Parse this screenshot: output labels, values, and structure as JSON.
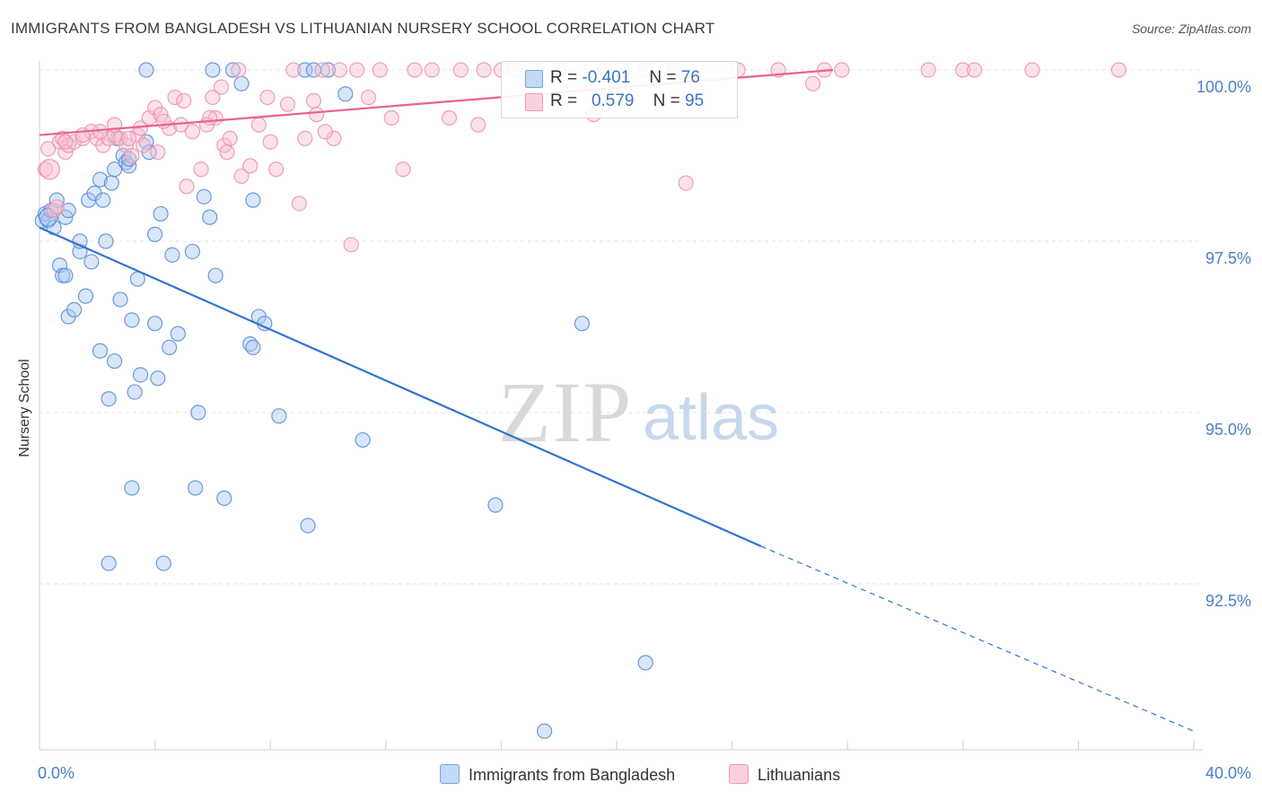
{
  "header": {
    "title": "IMMIGRANTS FROM BANGLADESH VS LITHUANIAN NURSERY SCHOOL CORRELATION CHART",
    "source": "Source: ZipAtlas.com"
  },
  "watermark": {
    "zip": "ZIP",
    "atlas": "atlas"
  },
  "legend": {
    "r_label": "R =",
    "n_label": "N =",
    "rows": [
      {
        "r": "-0.401",
        "n": "76",
        "color": "#a8c8f0",
        "border": "#6a9ede"
      },
      {
        "r": "0.579",
        "n": "95",
        "color": "#f7bed0",
        "border": "#ee8aaa"
      }
    ]
  },
  "bottom_legend": [
    {
      "label": "Immigrants from Bangladesh",
      "color": "#c4d9f5",
      "border": "#7aa4dc"
    },
    {
      "label": "Lithuanians",
      "color": "#fbd0dd",
      "border": "#ee9ab5"
    }
  ],
  "colors": {
    "blue": "#5b8fd6",
    "blue_line": "#2f74d0",
    "pink": "#ee93b0",
    "pink_line": "#e8638f",
    "axis_text": "#4a7fc8"
  },
  "chart_data": {
    "type": "scatter",
    "title": "IMMIGRANTS FROM BANGLADESH VS LITHUANIAN NURSERY SCHOOL CORRELATION CHART",
    "xlabel": "",
    "ylabel": "Nursery School",
    "xlim": [
      0,
      40
    ],
    "ylim": [
      90.2,
      100.25
    ],
    "x_tick_labels": [
      "0.0%",
      "40.0%"
    ],
    "y_ticks": [
      92.5,
      95.0,
      97.5,
      100.0
    ],
    "y_tick_labels": [
      "92.5%",
      "95.0%",
      "97.5%",
      "100.0%"
    ],
    "grid": true,
    "series": [
      {
        "name": "Immigrants from Bangladesh",
        "r": -0.401,
        "n": 76,
        "trend": {
          "x": [
            0.0,
            25.0
          ],
          "y": [
            97.7,
            93.05
          ],
          "dashed_to": [
            40.0,
            90.35
          ]
        },
        "points": [
          [
            0.1,
            97.8
          ],
          [
            0.2,
            97.9
          ],
          [
            0.3,
            97.8
          ],
          [
            0.4,
            97.95
          ],
          [
            0.5,
            97.7
          ],
          [
            0.6,
            98.1
          ],
          [
            0.9,
            97.85
          ],
          [
            1.0,
            97.95
          ],
          [
            0.7,
            97.15
          ],
          [
            0.8,
            97.0
          ],
          [
            0.9,
            97.0
          ],
          [
            1.0,
            96.4
          ],
          [
            1.2,
            96.5
          ],
          [
            1.4,
            97.35
          ],
          [
            1.4,
            97.5
          ],
          [
            1.8,
            97.2
          ],
          [
            1.7,
            98.1
          ],
          [
            1.9,
            98.2
          ],
          [
            1.6,
            96.7
          ],
          [
            2.1,
            98.4
          ],
          [
            2.1,
            95.9
          ],
          [
            2.2,
            98.1
          ],
          [
            2.5,
            98.35
          ],
          [
            2.3,
            97.5
          ],
          [
            2.4,
            95.2
          ],
          [
            2.6,
            98.55
          ],
          [
            2.6,
            95.75
          ],
          [
            2.7,
            99.0
          ],
          [
            2.8,
            96.65
          ],
          [
            2.9,
            98.75
          ],
          [
            3.0,
            98.65
          ],
          [
            3.1,
            98.6
          ],
          [
            3.1,
            98.7
          ],
          [
            3.2,
            96.35
          ],
          [
            3.2,
            93.9
          ],
          [
            3.3,
            95.3
          ],
          [
            3.4,
            96.95
          ],
          [
            3.5,
            95.55
          ],
          [
            3.7,
            98.95
          ],
          [
            3.8,
            98.8
          ],
          [
            3.7,
            100.0
          ],
          [
            4.0,
            96.3
          ],
          [
            4.0,
            97.6
          ],
          [
            4.1,
            95.5
          ],
          [
            4.2,
            97.9
          ],
          [
            4.3,
            92.8
          ],
          [
            4.5,
            95.95
          ],
          [
            4.6,
            97.3
          ],
          [
            4.8,
            96.15
          ],
          [
            5.3,
            97.35
          ],
          [
            5.4,
            93.9
          ],
          [
            5.5,
            95.0
          ],
          [
            5.7,
            98.15
          ],
          [
            5.9,
            97.85
          ],
          [
            6.1,
            97.0
          ],
          [
            6.0,
            100.0
          ],
          [
            6.4,
            93.75
          ],
          [
            6.7,
            100.0
          ],
          [
            7.0,
            99.8
          ],
          [
            7.3,
            96.0
          ],
          [
            7.4,
            98.1
          ],
          [
            7.4,
            95.95
          ],
          [
            7.6,
            96.4
          ],
          [
            7.8,
            96.3
          ],
          [
            8.3,
            94.95
          ],
          [
            9.3,
            93.35
          ],
          [
            9.2,
            100.0
          ],
          [
            9.5,
            100.0
          ],
          [
            10.0,
            100.0
          ],
          [
            10.6,
            99.65
          ],
          [
            11.2,
            94.6
          ],
          [
            15.8,
            93.65
          ],
          [
            18.8,
            96.3
          ],
          [
            21.0,
            91.35
          ],
          [
            17.5,
            90.35
          ],
          [
            2.4,
            92.8
          ]
        ]
      },
      {
        "name": "Lithuanians",
        "r": 0.579,
        "n": 95,
        "trend": {
          "x": [
            0.0,
            27.5
          ],
          "y": [
            99.05,
            100.0
          ]
        },
        "points": [
          [
            0.2,
            98.55
          ],
          [
            0.3,
            98.85
          ],
          [
            0.5,
            97.95
          ],
          [
            0.6,
            98.0
          ],
          [
            0.7,
            98.95
          ],
          [
            0.8,
            99.0
          ],
          [
            0.9,
            98.8
          ],
          [
            1.0,
            98.9
          ],
          [
            1.2,
            98.95
          ],
          [
            1.5,
            99.0
          ],
          [
            1.8,
            99.1
          ],
          [
            2.0,
            99.0
          ],
          [
            2.2,
            98.9
          ],
          [
            2.4,
            99.0
          ],
          [
            2.6,
            99.05
          ],
          [
            2.6,
            99.2
          ],
          [
            2.8,
            99.0
          ],
          [
            3.0,
            98.9
          ],
          [
            3.2,
            98.75
          ],
          [
            3.4,
            99.05
          ],
          [
            3.5,
            99.15
          ],
          [
            3.6,
            98.9
          ],
          [
            3.8,
            99.3
          ],
          [
            4.0,
            99.45
          ],
          [
            4.1,
            98.8
          ],
          [
            4.2,
            99.35
          ],
          [
            4.5,
            99.15
          ],
          [
            4.7,
            99.6
          ],
          [
            4.9,
            99.2
          ],
          [
            5.0,
            99.55
          ],
          [
            5.1,
            98.3
          ],
          [
            5.3,
            99.1
          ],
          [
            5.6,
            98.55
          ],
          [
            5.8,
            99.2
          ],
          [
            6.0,
            99.6
          ],
          [
            6.1,
            99.3
          ],
          [
            6.3,
            99.75
          ],
          [
            6.4,
            98.9
          ],
          [
            6.5,
            98.8
          ],
          [
            6.9,
            100.0
          ],
          [
            7.0,
            98.45
          ],
          [
            7.3,
            98.6
          ],
          [
            7.6,
            99.2
          ],
          [
            7.9,
            99.6
          ],
          [
            8.0,
            98.95
          ],
          [
            8.2,
            98.55
          ],
          [
            8.6,
            99.5
          ],
          [
            8.8,
            100.0
          ],
          [
            9.0,
            98.05
          ],
          [
            9.2,
            99.0
          ],
          [
            9.5,
            99.55
          ],
          [
            9.6,
            99.35
          ],
          [
            9.8,
            100.0
          ],
          [
            10.2,
            99.0
          ],
          [
            10.4,
            100.0
          ],
          [
            10.8,
            97.45
          ],
          [
            11.0,
            100.0
          ],
          [
            11.4,
            99.6
          ],
          [
            11.8,
            100.0
          ],
          [
            12.2,
            99.3
          ],
          [
            12.6,
            98.55
          ],
          [
            13.0,
            100.0
          ],
          [
            13.6,
            100.0
          ],
          [
            14.2,
            99.3
          ],
          [
            14.6,
            100.0
          ],
          [
            15.2,
            99.2
          ],
          [
            15.4,
            100.0
          ],
          [
            16.0,
            100.0
          ],
          [
            16.5,
            100.0
          ],
          [
            17.2,
            100.0
          ],
          [
            18.0,
            100.0
          ],
          [
            19.2,
            99.35
          ],
          [
            19.6,
            100.0
          ],
          [
            20.2,
            100.0
          ],
          [
            21.0,
            100.0
          ],
          [
            22.0,
            100.0
          ],
          [
            22.4,
            98.35
          ],
          [
            24.2,
            100.0
          ],
          [
            25.6,
            100.0
          ],
          [
            26.8,
            99.8
          ],
          [
            27.2,
            100.0
          ],
          [
            27.8,
            100.0
          ],
          [
            30.8,
            100.0
          ],
          [
            32.0,
            100.0
          ],
          [
            32.4,
            100.0
          ],
          [
            34.4,
            100.0
          ],
          [
            37.4,
            100.0
          ],
          [
            1.5,
            99.05
          ],
          [
            2.1,
            99.1
          ],
          [
            0.9,
            98.95
          ],
          [
            3.1,
            99.0
          ],
          [
            4.3,
            99.25
          ],
          [
            5.9,
            99.3
          ],
          [
            6.6,
            99.0
          ],
          [
            9.9,
            99.1
          ]
        ]
      }
    ]
  }
}
